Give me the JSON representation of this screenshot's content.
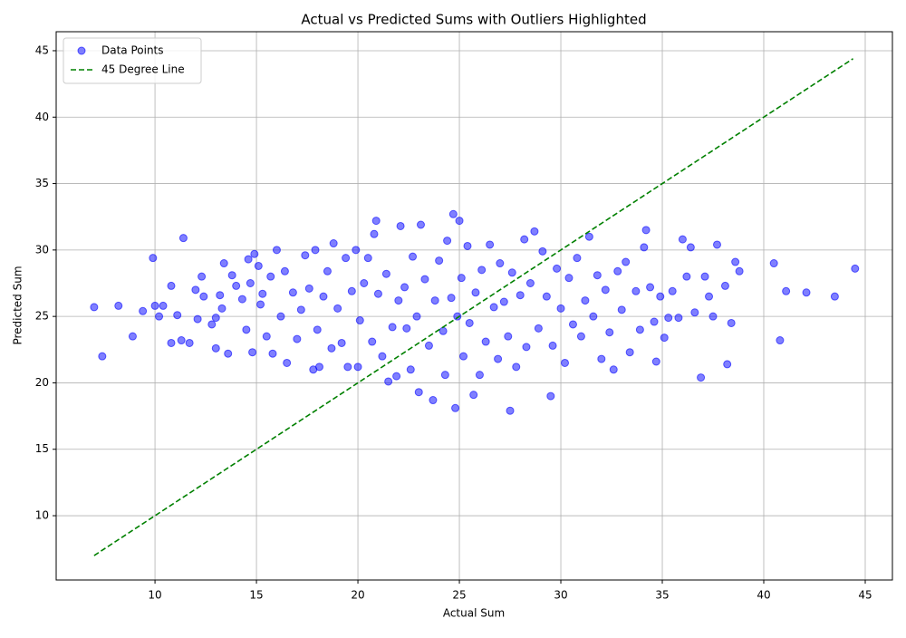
{
  "chart_data": {
    "type": "scatter",
    "title": "Actual vs Predicted Sums with Outliers Highlighted",
    "x_label": "Actual Sum",
    "y_label": "Predicted Sum",
    "xlim": [
      5.13,
      46.34
    ],
    "ylim": [
      5.16,
      46.43
    ],
    "xticks": [
      10,
      15,
      20,
      25,
      30,
      35,
      40,
      45
    ],
    "yticks": [
      10,
      15,
      20,
      25,
      30,
      35,
      40,
      45
    ],
    "grid": true,
    "legend": "upper-left",
    "series": [
      {
        "name": "Data Points",
        "color": "blue",
        "kind": "points",
        "x": [
          7.0,
          7.4,
          8.2,
          8.9,
          9.4,
          9.9,
          10.0,
          10.2,
          10.4,
          10.8,
          10.8,
          11.1,
          11.3,
          11.4,
          11.7,
          12.0,
          12.1,
          12.3,
          12.4,
          12.8,
          13.0,
          13.0,
          13.2,
          13.3,
          13.4,
          13.6,
          13.8,
          14.0,
          14.3,
          14.5,
          14.6,
          14.7,
          14.8,
          14.9,
          15.1,
          15.2,
          15.3,
          15.5,
          15.7,
          15.8,
          16.0,
          16.2,
          16.4,
          16.5,
          16.8,
          17.0,
          17.2,
          17.4,
          17.6,
          17.8,
          17.9,
          18.0,
          18.1,
          18.3,
          18.5,
          18.7,
          18.8,
          19.0,
          19.2,
          19.4,
          19.5,
          19.7,
          19.9,
          20.0,
          20.1,
          20.3,
          20.5,
          20.7,
          20.8,
          20.9,
          21.0,
          21.2,
          21.4,
          21.5,
          21.7,
          21.9,
          22.0,
          22.1,
          22.3,
          22.4,
          22.6,
          22.7,
          22.9,
          23.0,
          23.1,
          23.3,
          23.5,
          23.7,
          23.8,
          24.0,
          24.2,
          24.3,
          24.4,
          24.6,
          24.7,
          24.8,
          24.9,
          25.0,
          25.1,
          25.2,
          25.4,
          25.5,
          25.7,
          25.8,
          26.0,
          26.1,
          26.3,
          26.5,
          26.7,
          26.9,
          27.0,
          27.2,
          27.4,
          27.5,
          27.6,
          27.8,
          28.0,
          28.2,
          28.3,
          28.5,
          28.7,
          28.9,
          29.1,
          29.3,
          29.5,
          29.6,
          29.8,
          30.0,
          30.2,
          30.4,
          30.6,
          30.8,
          31.0,
          31.2,
          31.4,
          31.6,
          31.8,
          32.0,
          32.2,
          32.4,
          32.6,
          32.8,
          33.0,
          33.2,
          33.4,
          33.7,
          33.9,
          34.1,
          34.2,
          34.4,
          34.6,
          34.7,
          34.9,
          35.1,
          35.3,
          35.5,
          35.8,
          36.0,
          36.2,
          36.4,
          36.6,
          36.9,
          37.1,
          37.3,
          37.5,
          37.7,
          38.1,
          38.2,
          38.4,
          38.6,
          38.8,
          40.5,
          40.8,
          41.1,
          42.1,
          43.5,
          44.5
        ],
        "y": [
          25.7,
          22.0,
          25.8,
          23.5,
          25.4,
          29.4,
          25.8,
          25.0,
          25.8,
          23.0,
          27.3,
          25.1,
          23.2,
          30.9,
          23.0,
          27.0,
          24.8,
          28.0,
          26.5,
          24.4,
          22.6,
          24.9,
          26.6,
          25.6,
          29.0,
          22.2,
          28.1,
          27.3,
          26.3,
          24.0,
          29.3,
          27.5,
          22.3,
          29.7,
          28.8,
          25.9,
          26.7,
          23.5,
          28.0,
          22.2,
          30.0,
          25.0,
          28.4,
          21.5,
          26.8,
          23.3,
          25.5,
          29.6,
          27.1,
          21.0,
          30.0,
          24.0,
          21.2,
          26.5,
          28.4,
          22.6,
          30.5,
          25.6,
          23.0,
          29.4,
          21.2,
          26.9,
          30.0,
          21.2,
          24.7,
          27.5,
          29.4,
          23.1,
          31.2,
          32.2,
          26.7,
          22.0,
          28.2,
          20.1,
          24.2,
          20.5,
          26.2,
          31.8,
          27.2,
          24.1,
          21.0,
          29.5,
          25.0,
          19.3,
          31.9,
          27.8,
          22.8,
          18.7,
          26.2,
          29.2,
          23.9,
          20.6,
          30.7,
          26.4,
          32.7,
          18.1,
          25.0,
          32.2,
          27.9,
          22.0,
          30.3,
          24.5,
          19.1,
          26.8,
          20.6,
          28.5,
          23.1,
          30.4,
          25.7,
          21.8,
          29.0,
          26.1,
          23.5,
          17.9,
          28.3,
          21.2,
          26.6,
          30.8,
          22.7,
          27.5,
          31.4,
          24.1,
          29.9,
          26.5,
          19.0,
          22.8,
          28.6,
          25.6,
          21.5,
          27.9,
          24.4,
          29.4,
          23.5,
          26.2,
          31.0,
          25.0,
          28.1,
          21.8,
          27.0,
          23.8,
          21.0,
          28.4,
          25.5,
          29.1,
          22.3,
          26.9,
          24.0,
          30.2,
          31.5,
          27.2,
          24.6,
          21.6,
          26.5,
          23.4,
          24.9,
          26.9,
          24.9,
          30.8,
          28.0,
          30.2,
          25.3,
          20.4,
          28.0,
          26.5,
          25.0,
          30.4,
          27.3,
          21.4,
          24.5,
          29.1,
          28.4,
          29.0,
          23.2,
          26.9,
          26.8,
          26.5,
          28.6
        ]
      },
      {
        "name": "45 Degree Line",
        "color": "green",
        "kind": "dashed-line",
        "x": [
          7.0,
          44.4
        ],
        "y": [
          7.0,
          44.4
        ]
      }
    ]
  }
}
